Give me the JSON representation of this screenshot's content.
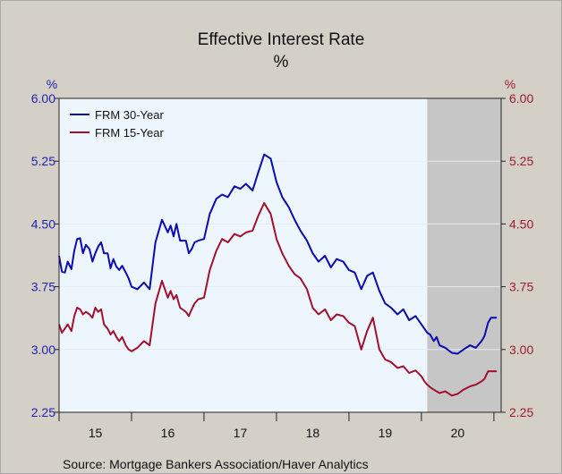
{
  "chart_data": {
    "type": "line",
    "title": "Effective Interest Rate",
    "subtitle": "%",
    "ylabel_left": "%",
    "ylabel_right": "%",
    "source": "Source:  Mortgage Bankers Association/Haver Analytics",
    "ylim": [
      2.25,
      6.0
    ],
    "yticks": [
      "6.00",
      "5.25",
      "4.50",
      "3.75",
      "3.00",
      "2.25"
    ],
    "xlim": [
      2015.0,
      2021.1
    ],
    "xtick_labels": [
      "15",
      "16",
      "17",
      "18",
      "19",
      "20"
    ],
    "recession_shading": [
      2020.08,
      2021.1
    ],
    "legend_position": "top-left",
    "colors": {
      "frm30": "#0b0bb0",
      "frm15": "#a3102e",
      "plot_bg": "#eef6fd",
      "recession": "#c6c6c6"
    },
    "series": [
      {
        "name": "FRM 30-Year",
        "color": "#0b0bb0",
        "x": [
          2015.0,
          2015.04,
          2015.08,
          2015.12,
          2015.17,
          2015.21,
          2015.25,
          2015.29,
          2015.33,
          2015.37,
          2015.42,
          2015.46,
          2015.5,
          2015.54,
          2015.58,
          2015.62,
          2015.67,
          2015.71,
          2015.75,
          2015.79,
          2015.83,
          2015.87,
          2015.92,
          2015.96,
          2016.0,
          2016.08,
          2016.17,
          2016.25,
          2016.33,
          2016.42,
          2016.5,
          2016.54,
          2016.58,
          2016.62,
          2016.67,
          2016.75,
          2016.79,
          2016.83,
          2016.87,
          2016.92,
          2017.0,
          2017.08,
          2017.17,
          2017.25,
          2017.33,
          2017.42,
          2017.5,
          2017.58,
          2017.67,
          2017.75,
          2017.83,
          2017.92,
          2018.0,
          2018.08,
          2018.17,
          2018.25,
          2018.33,
          2018.42,
          2018.5,
          2018.58,
          2018.67,
          2018.75,
          2018.83,
          2018.92,
          2019.0,
          2019.08,
          2019.17,
          2019.25,
          2019.33,
          2019.42,
          2019.5,
          2019.58,
          2019.67,
          2019.75,
          2019.83,
          2019.92,
          2020.0,
          2020.04,
          2020.08,
          2020.12,
          2020.17,
          2020.21,
          2020.25,
          2020.33,
          2020.42,
          2020.5,
          2020.58,
          2020.67,
          2020.75,
          2020.83,
          2020.87,
          2020.92,
          2020.96,
          2021.0,
          2021.04
        ],
        "values": [
          4.12,
          3.93,
          3.92,
          4.05,
          3.96,
          4.18,
          4.32,
          4.33,
          4.15,
          4.25,
          4.2,
          4.05,
          4.15,
          4.23,
          4.28,
          4.15,
          4.15,
          3.97,
          4.08,
          3.99,
          3.95,
          4.0,
          3.92,
          3.85,
          3.75,
          3.72,
          3.8,
          3.72,
          4.28,
          4.55,
          4.4,
          4.48,
          4.35,
          4.5,
          4.3,
          4.3,
          4.15,
          4.2,
          4.28,
          4.3,
          4.32,
          4.62,
          4.8,
          4.85,
          4.82,
          4.95,
          4.92,
          4.98,
          4.9,
          5.12,
          5.33,
          5.28,
          5.0,
          4.82,
          4.7,
          4.55,
          4.42,
          4.3,
          4.15,
          4.05,
          4.12,
          3.98,
          4.08,
          4.05,
          3.95,
          3.92,
          3.72,
          3.88,
          3.92,
          3.7,
          3.55,
          3.5,
          3.42,
          3.48,
          3.35,
          3.4,
          3.3,
          3.25,
          3.2,
          3.18,
          3.1,
          3.15,
          3.05,
          3.02,
          2.96,
          2.95,
          3.0,
          3.05,
          3.02,
          3.1,
          3.16,
          3.32,
          3.38,
          3.38,
          3.38
        ]
      },
      {
        "name": "FRM 15-Year",
        "color": "#a3102e",
        "x": [
          2015.0,
          2015.04,
          2015.08,
          2015.12,
          2015.17,
          2015.21,
          2015.25,
          2015.29,
          2015.33,
          2015.37,
          2015.42,
          2015.46,
          2015.5,
          2015.54,
          2015.58,
          2015.62,
          2015.67,
          2015.71,
          2015.75,
          2015.79,
          2015.83,
          2015.87,
          2015.92,
          2015.96,
          2016.0,
          2016.08,
          2016.17,
          2016.25,
          2016.33,
          2016.42,
          2016.5,
          2016.54,
          2016.58,
          2016.62,
          2016.67,
          2016.75,
          2016.79,
          2016.83,
          2016.87,
          2016.92,
          2017.0,
          2017.08,
          2017.17,
          2017.25,
          2017.33,
          2017.42,
          2017.5,
          2017.58,
          2017.67,
          2017.75,
          2017.83,
          2017.92,
          2018.0,
          2018.08,
          2018.17,
          2018.25,
          2018.33,
          2018.42,
          2018.5,
          2018.58,
          2018.67,
          2018.75,
          2018.83,
          2018.92,
          2019.0,
          2019.08,
          2019.17,
          2019.25,
          2019.33,
          2019.42,
          2019.5,
          2019.58,
          2019.67,
          2019.75,
          2019.83,
          2019.92,
          2020.0,
          2020.04,
          2020.08,
          2020.12,
          2020.17,
          2020.21,
          2020.25,
          2020.33,
          2020.42,
          2020.5,
          2020.58,
          2020.67,
          2020.75,
          2020.83,
          2020.87,
          2020.92,
          2020.96,
          2021.0,
          2021.04
        ],
        "values": [
          3.3,
          3.2,
          3.25,
          3.3,
          3.22,
          3.4,
          3.5,
          3.48,
          3.42,
          3.45,
          3.42,
          3.38,
          3.5,
          3.45,
          3.48,
          3.3,
          3.25,
          3.18,
          3.22,
          3.15,
          3.1,
          3.15,
          3.05,
          3.0,
          2.98,
          3.02,
          3.1,
          3.05,
          3.55,
          3.82,
          3.62,
          3.7,
          3.6,
          3.65,
          3.5,
          3.45,
          3.4,
          3.48,
          3.55,
          3.6,
          3.62,
          3.95,
          4.18,
          4.32,
          4.28,
          4.38,
          4.35,
          4.4,
          4.42,
          4.6,
          4.75,
          4.62,
          4.32,
          4.15,
          4.0,
          3.9,
          3.85,
          3.72,
          3.5,
          3.42,
          3.48,
          3.35,
          3.42,
          3.4,
          3.32,
          3.28,
          3.0,
          3.22,
          3.38,
          3.0,
          2.88,
          2.85,
          2.78,
          2.8,
          2.72,
          2.75,
          2.68,
          2.62,
          2.58,
          2.55,
          2.52,
          2.5,
          2.48,
          2.5,
          2.45,
          2.47,
          2.52,
          2.56,
          2.58,
          2.62,
          2.65,
          2.74,
          2.74,
          2.74,
          2.74
        ]
      }
    ]
  }
}
